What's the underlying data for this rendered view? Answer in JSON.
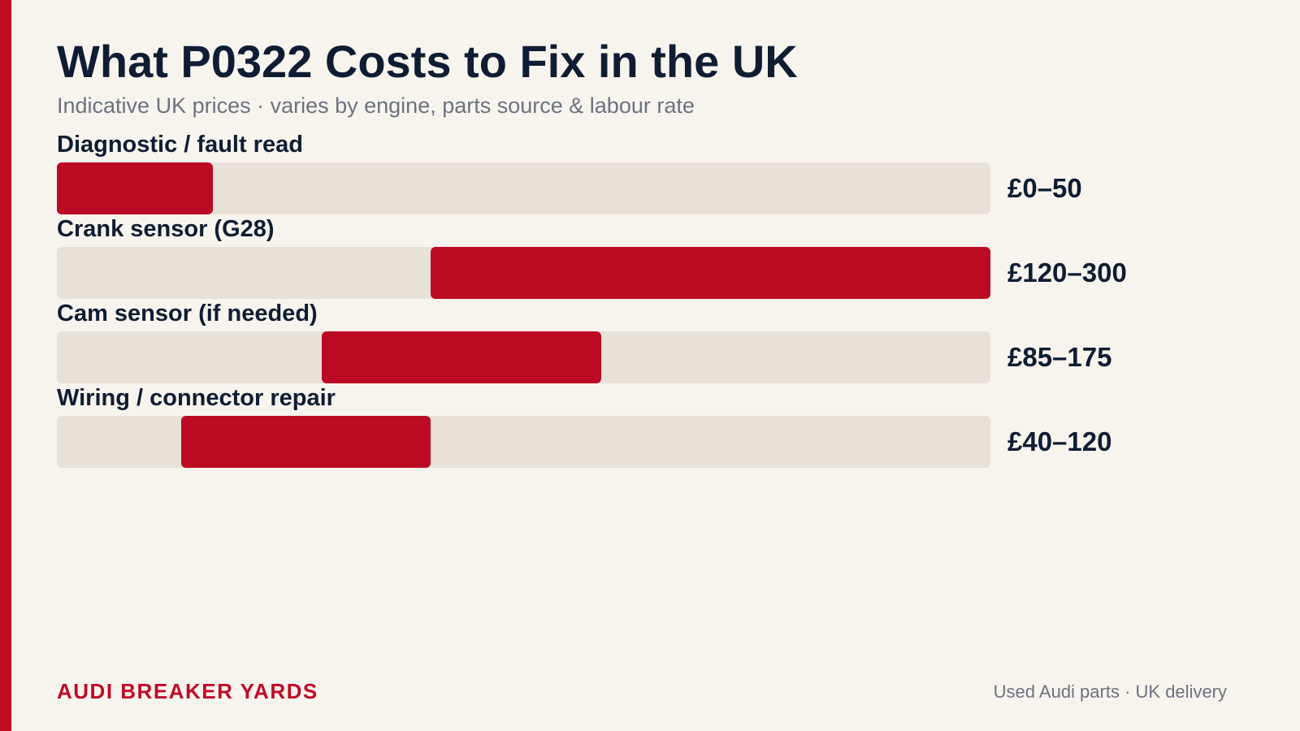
{
  "header": {
    "title": "What P0322 Costs to Fix in the UK",
    "subtitle": "Indicative UK prices · varies by engine, parts source & labour rate"
  },
  "chart_data": {
    "type": "bar",
    "orientation": "horizontal",
    "title": "What P0322 Costs to Fix in the UK",
    "subtitle": "Indicative UK prices · varies by engine, parts source & labour rate",
    "xlabel": "",
    "ylabel": "",
    "xlim": [
      0,
      300
    ],
    "grid": false,
    "unit": "£",
    "categories": [
      "Diagnostic / fault read",
      "Crank sensor (G28)",
      "Cam sensor (if needed)",
      "Wiring / connector repair"
    ],
    "ranges": [
      {
        "low": 0,
        "high": 50,
        "label": "£0–50"
      },
      {
        "low": 120,
        "high": 300,
        "label": "£120–300"
      },
      {
        "low": 85,
        "high": 175,
        "label": "£85–175"
      },
      {
        "low": 40,
        "high": 120,
        "label": "£40–120"
      }
    ]
  },
  "colors": {
    "accent": "#c00b24",
    "bar_fill": "#bb0a23",
    "track": "#e8e1d7",
    "background": "#f7f4ee",
    "text": "#0f1d33",
    "muted": "#6c7280"
  },
  "footer": {
    "brand": "AUDI BREAKER YARDS",
    "note": "Used Audi parts · UK delivery"
  }
}
